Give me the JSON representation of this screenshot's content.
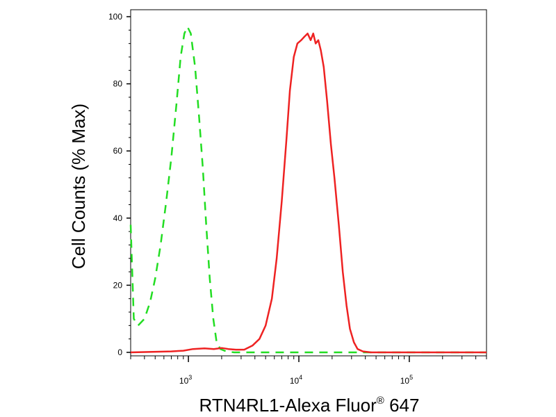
{
  "chart_data": {
    "type": "line",
    "title": "",
    "xlabel": "RTN4RL1-Alexa Fluor",
    "xlabel_superscript": "®",
    "xlabel_suffix": " 647",
    "ylabel": "Cell Counts (% Max)",
    "x_scale": "log",
    "xlim": [
      300,
      500000
    ],
    "ylim": [
      0,
      100
    ],
    "x_tick_labels": [
      {
        "base": "10",
        "exp": "3",
        "value": 1000
      },
      {
        "base": "10",
        "exp": "4",
        "value": 10000
      },
      {
        "base": "10",
        "exp": "5",
        "value": 100000
      }
    ],
    "y_ticks": [
      0,
      20,
      40,
      60,
      80,
      100
    ],
    "y_tick_labels": [
      "0",
      "20",
      "40",
      "60",
      "80",
      "100"
    ],
    "grid": false,
    "legend": "none",
    "series": [
      {
        "color": "#22dd22",
        "style": "dashed",
        "points": [
          [
            300,
            38
          ],
          [
            320,
            10
          ],
          [
            350,
            8
          ],
          [
            400,
            10
          ],
          [
            450,
            15
          ],
          [
            500,
            22
          ],
          [
            560,
            32
          ],
          [
            630,
            45
          ],
          [
            700,
            58
          ],
          [
            780,
            74
          ],
          [
            850,
            88
          ],
          [
            920,
            95
          ],
          [
            980,
            97
          ],
          [
            1050,
            95
          ],
          [
            1150,
            85
          ],
          [
            1250,
            70
          ],
          [
            1350,
            55
          ],
          [
            1450,
            38
          ],
          [
            1560,
            22
          ],
          [
            1680,
            10
          ],
          [
            1800,
            3
          ],
          [
            1950,
            1
          ],
          [
            2200,
            0.3
          ],
          [
            2600,
            0
          ],
          [
            500000,
            0
          ]
        ]
      },
      {
        "color": "#ee2222",
        "style": "solid",
        "points": [
          [
            300,
            0
          ],
          [
            700,
            0.3
          ],
          [
            900,
            0.5
          ],
          [
            1100,
            1
          ],
          [
            1400,
            1.2
          ],
          [
            1700,
            1
          ],
          [
            2000,
            1.3
          ],
          [
            2300,
            1
          ],
          [
            2700,
            0.8
          ],
          [
            3200,
            0.8
          ],
          [
            3800,
            2
          ],
          [
            4400,
            4
          ],
          [
            5000,
            8
          ],
          [
            5700,
            16
          ],
          [
            6300,
            28
          ],
          [
            7000,
            45
          ],
          [
            7700,
            63
          ],
          [
            8300,
            78
          ],
          [
            9000,
            88
          ],
          [
            9700,
            92
          ],
          [
            10500,
            93
          ],
          [
            11200,
            94
          ],
          [
            12000,
            95
          ],
          [
            12800,
            93
          ],
          [
            13500,
            95
          ],
          [
            14200,
            92
          ],
          [
            15000,
            93
          ],
          [
            15800,
            90
          ],
          [
            16800,
            85
          ],
          [
            18000,
            75
          ],
          [
            19500,
            62
          ],
          [
            21000,
            52
          ],
          [
            23000,
            38
          ],
          [
            25000,
            24
          ],
          [
            27000,
            14
          ],
          [
            29000,
            7
          ],
          [
            31500,
            3
          ],
          [
            34000,
            1
          ],
          [
            38000,
            0.3
          ],
          [
            45000,
            0
          ],
          [
            500000,
            0
          ]
        ]
      }
    ]
  }
}
